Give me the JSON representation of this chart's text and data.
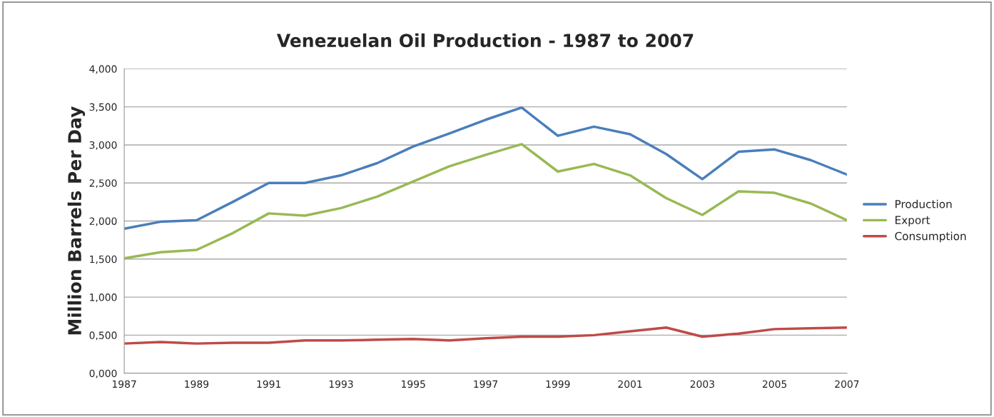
{
  "chart_data": {
    "type": "line",
    "title": "Venezuelan Oil Production - 1987 to 2007",
    "ylabel": "Million Barrels Per Day",
    "x": [
      1987,
      1988,
      1989,
      1990,
      1991,
      1992,
      1993,
      1994,
      1995,
      1996,
      1997,
      1998,
      1999,
      2000,
      2001,
      2002,
      2003,
      2004,
      2005,
      2006,
      2007
    ],
    "series": [
      {
        "name": "Production",
        "color": "#4a7ebb",
        "values": [
          1.9,
          1.99,
          2.01,
          2.25,
          2.5,
          2.5,
          2.6,
          2.76,
          2.98,
          3.15,
          3.33,
          3.49,
          3.12,
          3.24,
          3.14,
          2.88,
          2.55,
          2.91,
          2.94,
          2.8,
          2.61
        ]
      },
      {
        "name": "Export",
        "color": "#98b954",
        "values": [
          1.51,
          1.59,
          1.62,
          1.84,
          2.1,
          2.07,
          2.17,
          2.32,
          2.52,
          2.72,
          2.87,
          3.01,
          2.65,
          2.75,
          2.6,
          2.3,
          2.08,
          2.39,
          2.37,
          2.23,
          2.01
        ]
      },
      {
        "name": "Consumption",
        "color": "#be4b48",
        "values": [
          0.39,
          0.41,
          0.39,
          0.4,
          0.4,
          0.43,
          0.43,
          0.44,
          0.45,
          0.43,
          0.46,
          0.48,
          0.48,
          0.5,
          0.55,
          0.6,
          0.48,
          0.52,
          0.58,
          0.59,
          0.6
        ]
      }
    ],
    "xlim": [
      1987,
      2007
    ],
    "xticks": [
      1987,
      1989,
      1991,
      1993,
      1995,
      1997,
      1999,
      2001,
      2003,
      2005,
      2007
    ],
    "ylim": [
      0,
      4
    ],
    "yticks": [
      {
        "value": 0,
        "label": "0,000"
      },
      {
        "value": 0.5,
        "label": "0,500"
      },
      {
        "value": 1,
        "label": "1,000"
      },
      {
        "value": 1.5,
        "label": "1,500"
      },
      {
        "value": 2,
        "label": "2,000"
      },
      {
        "value": 2.5,
        "label": "2,500"
      },
      {
        "value": 3,
        "label": "3,000"
      },
      {
        "value": 3.5,
        "label": "3,500"
      },
      {
        "value": 4,
        "label": "4,000"
      }
    ],
    "grid": "y",
    "legend": "right",
    "marker": "none",
    "line_style": "solid"
  }
}
